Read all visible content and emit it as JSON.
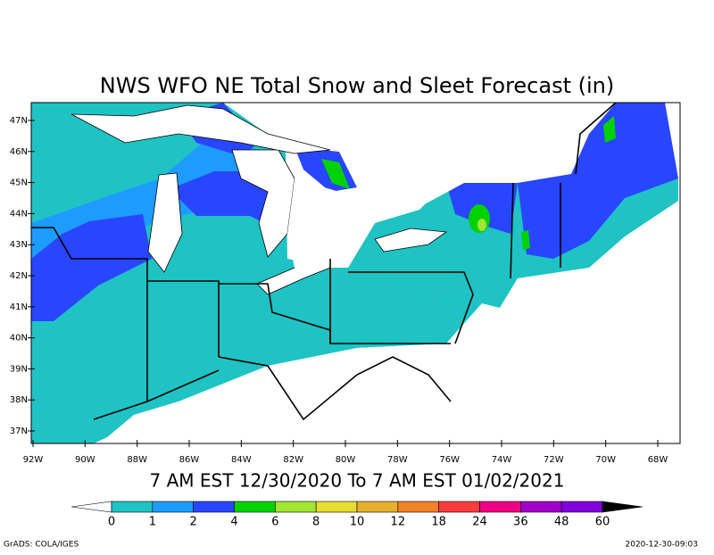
{
  "title": "NWS WFO NE Total Snow and Sleet Forecast (in)",
  "latitude_labels": [
    "47N",
    "46N",
    "45N",
    "44N",
    "43N",
    "42N",
    "41N",
    "40N",
    "39N",
    "38N",
    "37N"
  ],
  "longitude_labels": [
    "92W",
    "90W",
    "88W",
    "86W",
    "84W",
    "82W",
    "80W",
    "78W",
    "76W",
    "74W",
    "72W",
    "70W",
    "68W"
  ],
  "valid_period": "7 AM EST 12/30/2020 To 7 AM EST 01/02/2021",
  "colorbar": {
    "labels": [
      0,
      1,
      2,
      4,
      6,
      8,
      10,
      12,
      18,
      24,
      36,
      48,
      60
    ],
    "below_color": "#ffffff",
    "above_color": "#000000",
    "colors": [
      "#1fc3c3",
      "#1e9bff",
      "#2846ff",
      "#00d200",
      "#a0e632",
      "#e6dc32",
      "#e6af2d",
      "#f08228",
      "#fa3c3c",
      "#f00082",
      "#a000c8",
      "#8200dc"
    ]
  },
  "footer": {
    "left": "GrADS: COLA/IGES",
    "right": "2020-12-30-09:03"
  }
}
